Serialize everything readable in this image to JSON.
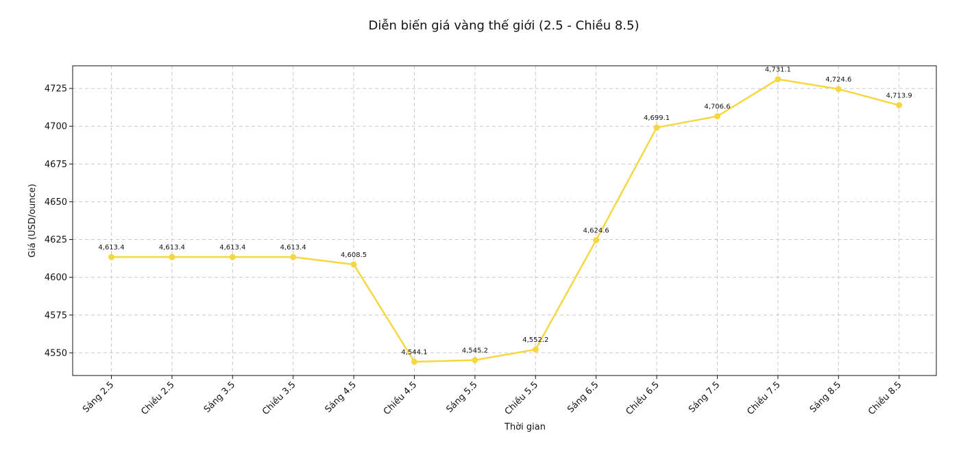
{
  "chart_data": {
    "type": "line",
    "title": "Diễn biến giá vàng thế giới (2.5 - Chiều 8.5)",
    "xlabel": "Thời gian",
    "ylabel": "Giá (USD/ounce)",
    "categories": [
      "Sáng 2.5",
      "Chiều 2.5",
      "Sáng 3.5",
      "Chiều 3.5",
      "Sáng 4.5",
      "Chiều 4.5",
      "Sáng 5.5",
      "Chiều 5.5",
      "Sáng 6.5",
      "Chiều 6.5",
      "Sáng 7.5",
      "Chiều 7.5",
      "Sáng 8.5",
      "Chiều 8.5"
    ],
    "series": [
      {
        "values": [
          4613.4,
          4613.4,
          4613.4,
          4613.4,
          4608.5,
          4544.1,
          4545.2,
          4552.2,
          4624.6,
          4699.1,
          4706.6,
          4731.1,
          4724.6,
          4713.9
        ],
        "color": "#f5d742"
      }
    ],
    "data_labels": [
      "4,613.4",
      "4,613.4",
      "4,613.4",
      "4,613.4",
      "4,608.5",
      "4,544.1",
      "4,545.2",
      "4,552.2",
      "4,624.6",
      "4,699.1",
      "4,706.6",
      "4,731.1",
      "4,724.6",
      "4,713.9"
    ],
    "yticks": [
      4550,
      4575,
      4600,
      4625,
      4650,
      4675,
      4700,
      4725
    ],
    "ylim": [
      4535,
      4740
    ],
    "grid": true,
    "legend": "none"
  }
}
